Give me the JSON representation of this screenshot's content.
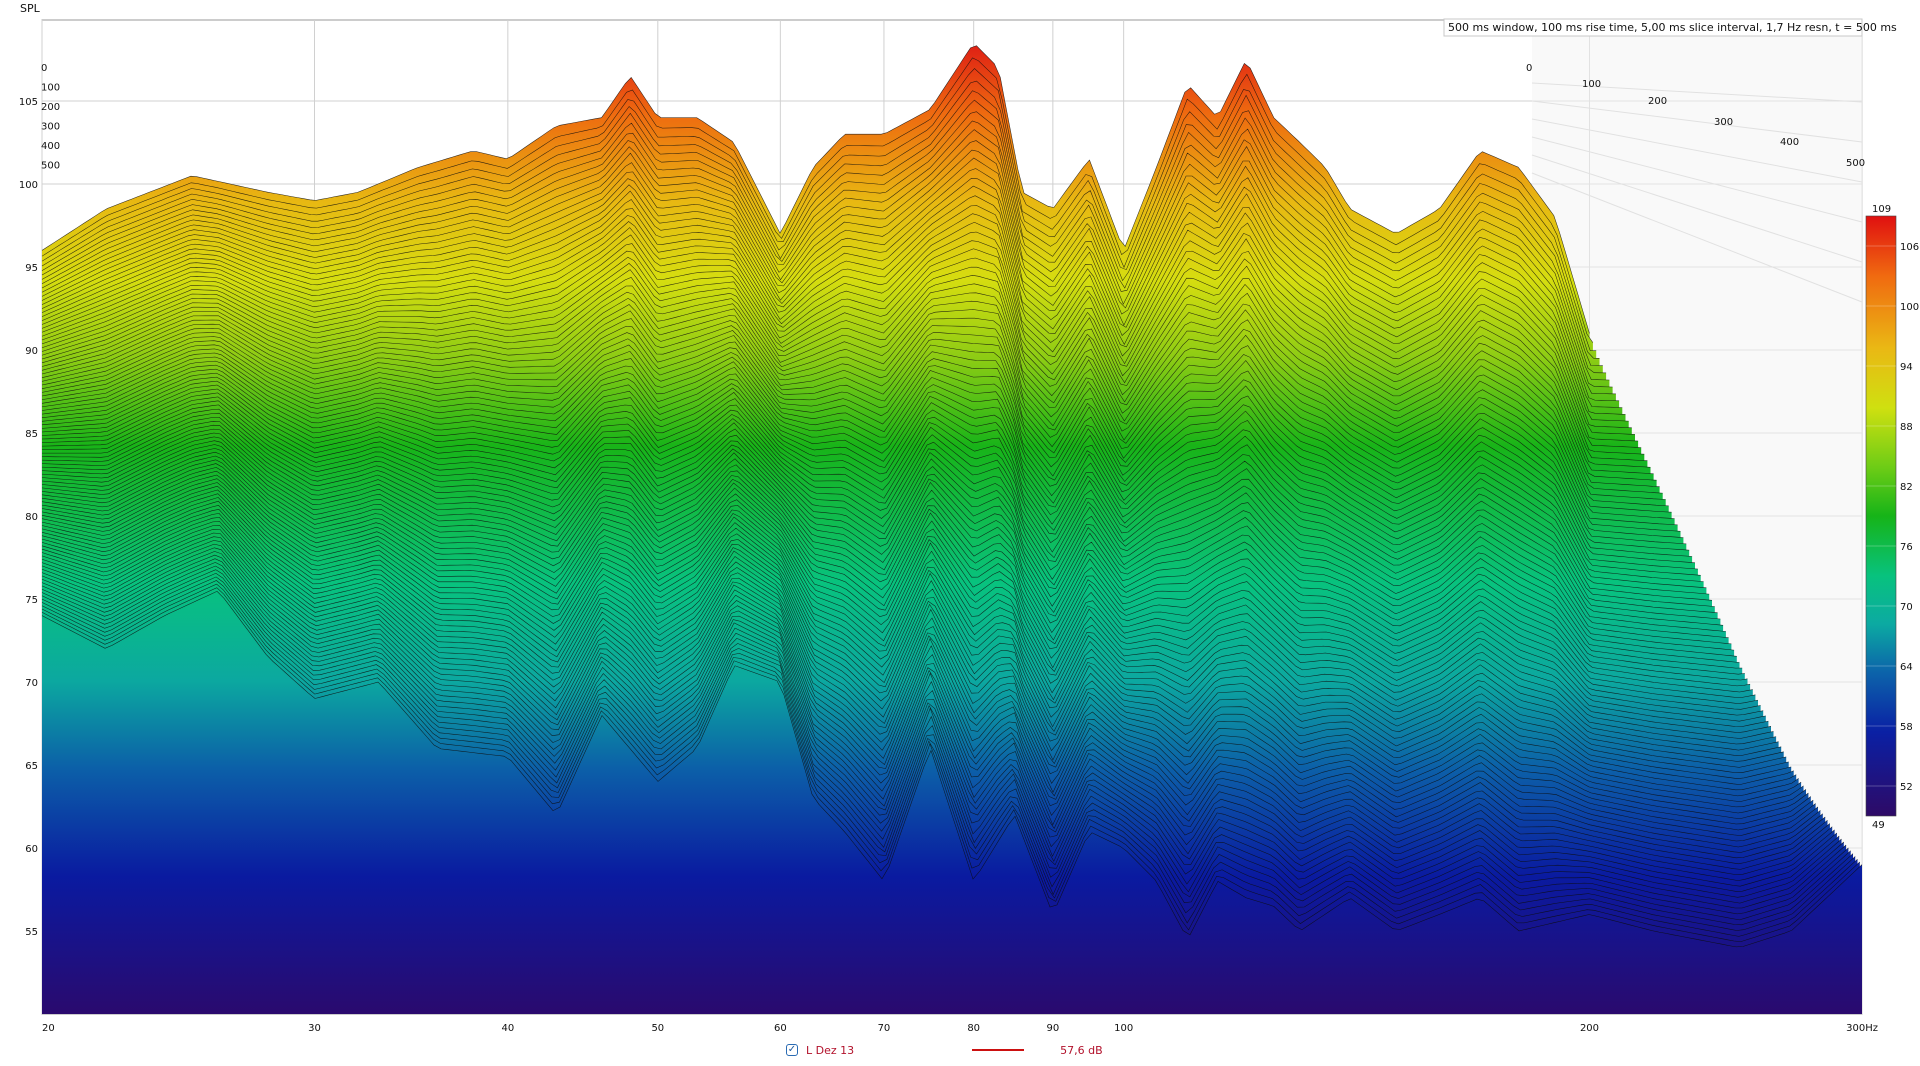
{
  "chart_data": {
    "type": "waterfall",
    "title": "500 ms window, 100 ms rise time, 5,00 ms slice interval, 1,7 Hz resn, t = 500 ms",
    "ylabel": "SPL",
    "xunit": "Hz",
    "xscale": "log",
    "xlim": [
      20,
      300
    ],
    "ylim": [
      50,
      110
    ],
    "x_ticks": [
      {
        "value": 20,
        "label": "20"
      },
      {
        "value": 30,
        "label": "30"
      },
      {
        "value": 40,
        "label": "40"
      },
      {
        "value": 50,
        "label": "50"
      },
      {
        "value": 60,
        "label": "60"
      },
      {
        "value": 70,
        "label": "70"
      },
      {
        "value": 80,
        "label": "80"
      },
      {
        "value": 90,
        "label": "90"
      },
      {
        "value": 100,
        "label": "100"
      },
      {
        "value": 200,
        "label": "200"
      },
      {
        "value": 300,
        "label": "300Hz"
      }
    ],
    "y_ticks": [
      {
        "value": 55,
        "label": "55"
      },
      {
        "value": 60,
        "label": "60"
      },
      {
        "value": 65,
        "label": "65"
      },
      {
        "value": 70,
        "label": "70"
      },
      {
        "value": 75,
        "label": "75"
      },
      {
        "value": 80,
        "label": "80"
      },
      {
        "value": 85,
        "label": "85"
      },
      {
        "value": 90,
        "label": "90"
      },
      {
        "value": 95,
        "label": "95"
      },
      {
        "value": 100,
        "label": "100"
      },
      {
        "value": 105,
        "label": "105"
      }
    ],
    "time_axis_ms": {
      "left_labels": [
        "0",
        "100",
        "200",
        "300",
        "400",
        "500"
      ],
      "right_labels": [
        "0",
        "100",
        "200",
        "300",
        "400",
        "500"
      ]
    },
    "colorbar": {
      "min_label": "49",
      "max_label": "109",
      "ticks": [
        {
          "value": 106,
          "label": "106"
        },
        {
          "value": 100,
          "label": "100"
        },
        {
          "value": 94,
          "label": "94"
        },
        {
          "value": 88,
          "label": "88"
        },
        {
          "value": 82,
          "label": "82"
        },
        {
          "value": 76,
          "label": "76"
        },
        {
          "value": 70,
          "label": "70"
        },
        {
          "value": 64,
          "label": "64"
        },
        {
          "value": 58,
          "label": "58"
        },
        {
          "value": 52,
          "label": "52"
        }
      ]
    },
    "slice_count": 100,
    "back_slice_t0": {
      "freq_hz": [
        20,
        22,
        25,
        28,
        30,
        32,
        35,
        38,
        40,
        43,
        46,
        48,
        50,
        53,
        56,
        60,
        63,
        66,
        70,
        75,
        80,
        83,
        86,
        90,
        95,
        100,
        105,
        110,
        115,
        120,
        125,
        130,
        135,
        140,
        150,
        160,
        170,
        180,
        190,
        200
      ],
      "spl_db": [
        96,
        98.5,
        100.5,
        99.5,
        99,
        99.5,
        101,
        102,
        101.5,
        103.5,
        104,
        106.5,
        104,
        104,
        102.5,
        97,
        101,
        103,
        103,
        104.5,
        108.5,
        107,
        99.5,
        98.5,
        101.5,
        96,
        101,
        106,
        104,
        107.5,
        104,
        102.5,
        101,
        98.5,
        97,
        98.5,
        102,
        101,
        98,
        91
      ]
    },
    "front_slice_t500": {
      "freq_hz": [
        20,
        22,
        24,
        26,
        28,
        30,
        33,
        36,
        40,
        43,
        46,
        50,
        53,
        56,
        60,
        63,
        66,
        70,
        75,
        80,
        85,
        90,
        95,
        100,
        105,
        110,
        115,
        120,
        125,
        130,
        140,
        150,
        160,
        170,
        180,
        200,
        220,
        250,
        270,
        300
      ],
      "spl_db": [
        74,
        72,
        74,
        75.5,
        71.5,
        69,
        70,
        66,
        65.5,
        62,
        68,
        64,
        66,
        71,
        70,
        63,
        61,
        58,
        66,
        58,
        62,
        56,
        61,
        60,
        58,
        54.5,
        58,
        57,
        56.5,
        55,
        57,
        55,
        56,
        57,
        55,
        56,
        55,
        54,
        55,
        59
      ]
    }
  },
  "legend": {
    "checkbox_checked": true,
    "series_name": "L Dez 13",
    "series_color": "#cc1111",
    "value": "57,6 dB"
  }
}
